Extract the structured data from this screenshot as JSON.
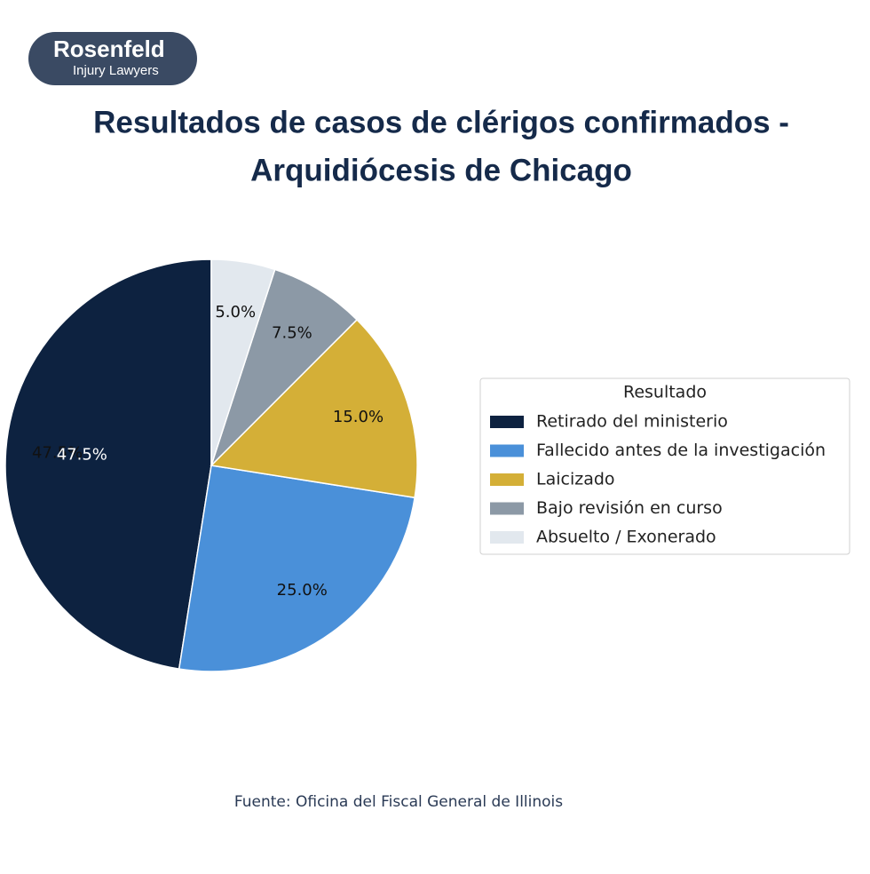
{
  "logo": {
    "name": "Rosenfeld",
    "tagline": "Injury Lawyers"
  },
  "chart_data": {
    "type": "pie",
    "title": "Resultados de casos de clérigos confirmados -",
    "subtitle": "Arquidiócesis de Chicago",
    "categories": [
      "Retirado del ministerio",
      "Fallecido antes de la investigación",
      "Laicizado",
      "Bajo revisión en curso",
      "Absuelto / Exonerado"
    ],
    "values": [
      47.5,
      25,
      15,
      7.5,
      5
    ],
    "value_labels": [
      "47.5%",
      "25.0%",
      "15.0%",
      "7.5%",
      "5.0%"
    ],
    "colors": [
      "#0d2240",
      "#4a90d9",
      "#d4af37",
      "#8c99a6",
      "#e2e8ee"
    ],
    "label_colors": [
      "#ffffff",
      "#111111",
      "#111111",
      "#111111",
      "#111111"
    ],
    "legend_title": "Resultado",
    "legend_position": "right",
    "source": "Fuente: Oficina del Fiscal General de Illinois"
  }
}
